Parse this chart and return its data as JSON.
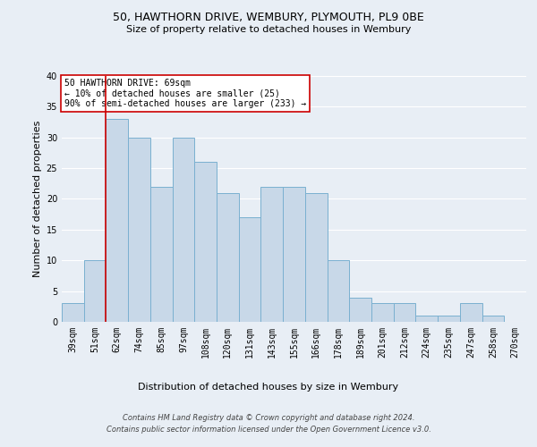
{
  "title1": "50, HAWTHORN DRIVE, WEMBURY, PLYMOUTH, PL9 0BE",
  "title2": "Size of property relative to detached houses in Wembury",
  "xlabel": "Distribution of detached houses by size in Wembury",
  "ylabel": "Number of detached properties",
  "footnote1": "Contains HM Land Registry data © Crown copyright and database right 2024.",
  "footnote2": "Contains public sector information licensed under the Open Government Licence v3.0.",
  "categories": [
    "39sqm",
    "51sqm",
    "62sqm",
    "74sqm",
    "85sqm",
    "97sqm",
    "108sqm",
    "120sqm",
    "131sqm",
    "143sqm",
    "155sqm",
    "166sqm",
    "178sqm",
    "189sqm",
    "201sqm",
    "212sqm",
    "224sqm",
    "235sqm",
    "247sqm",
    "258sqm",
    "270sqm"
  ],
  "values": [
    3,
    10,
    33,
    30,
    22,
    30,
    26,
    21,
    17,
    22,
    22,
    21,
    10,
    4,
    3,
    3,
    1,
    1,
    3,
    1,
    0
  ],
  "bar_color": "#c8d8e8",
  "bar_edge_color": "#7ab0d0",
  "annotation_line1": "50 HAWTHORN DRIVE: 69sqm",
  "annotation_line2": "← 10% of detached houses are smaller (25)",
  "annotation_line3": "90% of semi-detached houses are larger (233) →",
  "annotation_box_color": "#ffffff",
  "annotation_box_edge_color": "#cc0000",
  "vline_color": "#cc0000",
  "vline_index": 2,
  "bg_color": "#e8eef5",
  "plot_bg_color": "#e8eef5",
  "grid_color": "#ffffff",
  "ylim": [
    0,
    40
  ],
  "yticks": [
    0,
    5,
    10,
    15,
    20,
    25,
    30,
    35,
    40
  ],
  "title_fontsize": 9,
  "subtitle_fontsize": 8,
  "axis_label_fontsize": 8,
  "tick_fontsize": 7,
  "annotation_fontsize": 7,
  "footnote_fontsize": 6
}
